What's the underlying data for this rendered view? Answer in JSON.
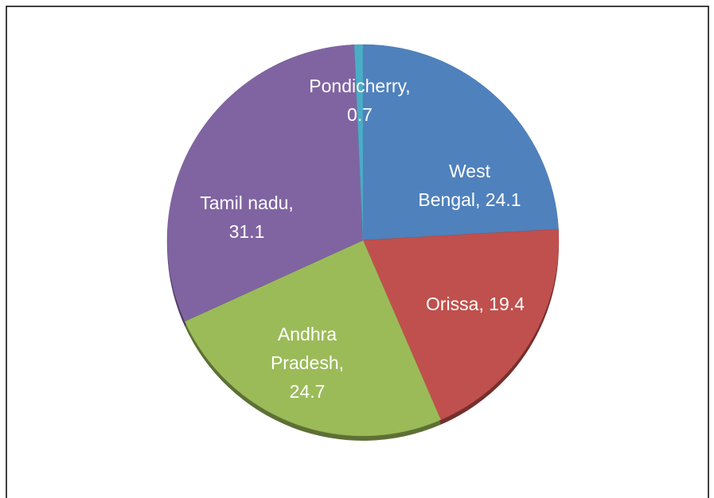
{
  "chart_data": {
    "type": "pie",
    "values": [
      24.1,
      19.4,
      24.7,
      31.1,
      0.7
    ],
    "value_labels": [
      "West Bengal, 24.1",
      "Orissa, 19.4",
      "Andhra Pradesh, 24.7",
      "Tamil nadu, 31.1",
      "Pondicherry, 0.7"
    ],
    "colors": [
      "#4f81bd",
      "#c0504d",
      "#9bbb59",
      "#8064a2",
      "#4bacc6"
    ]
  }
}
